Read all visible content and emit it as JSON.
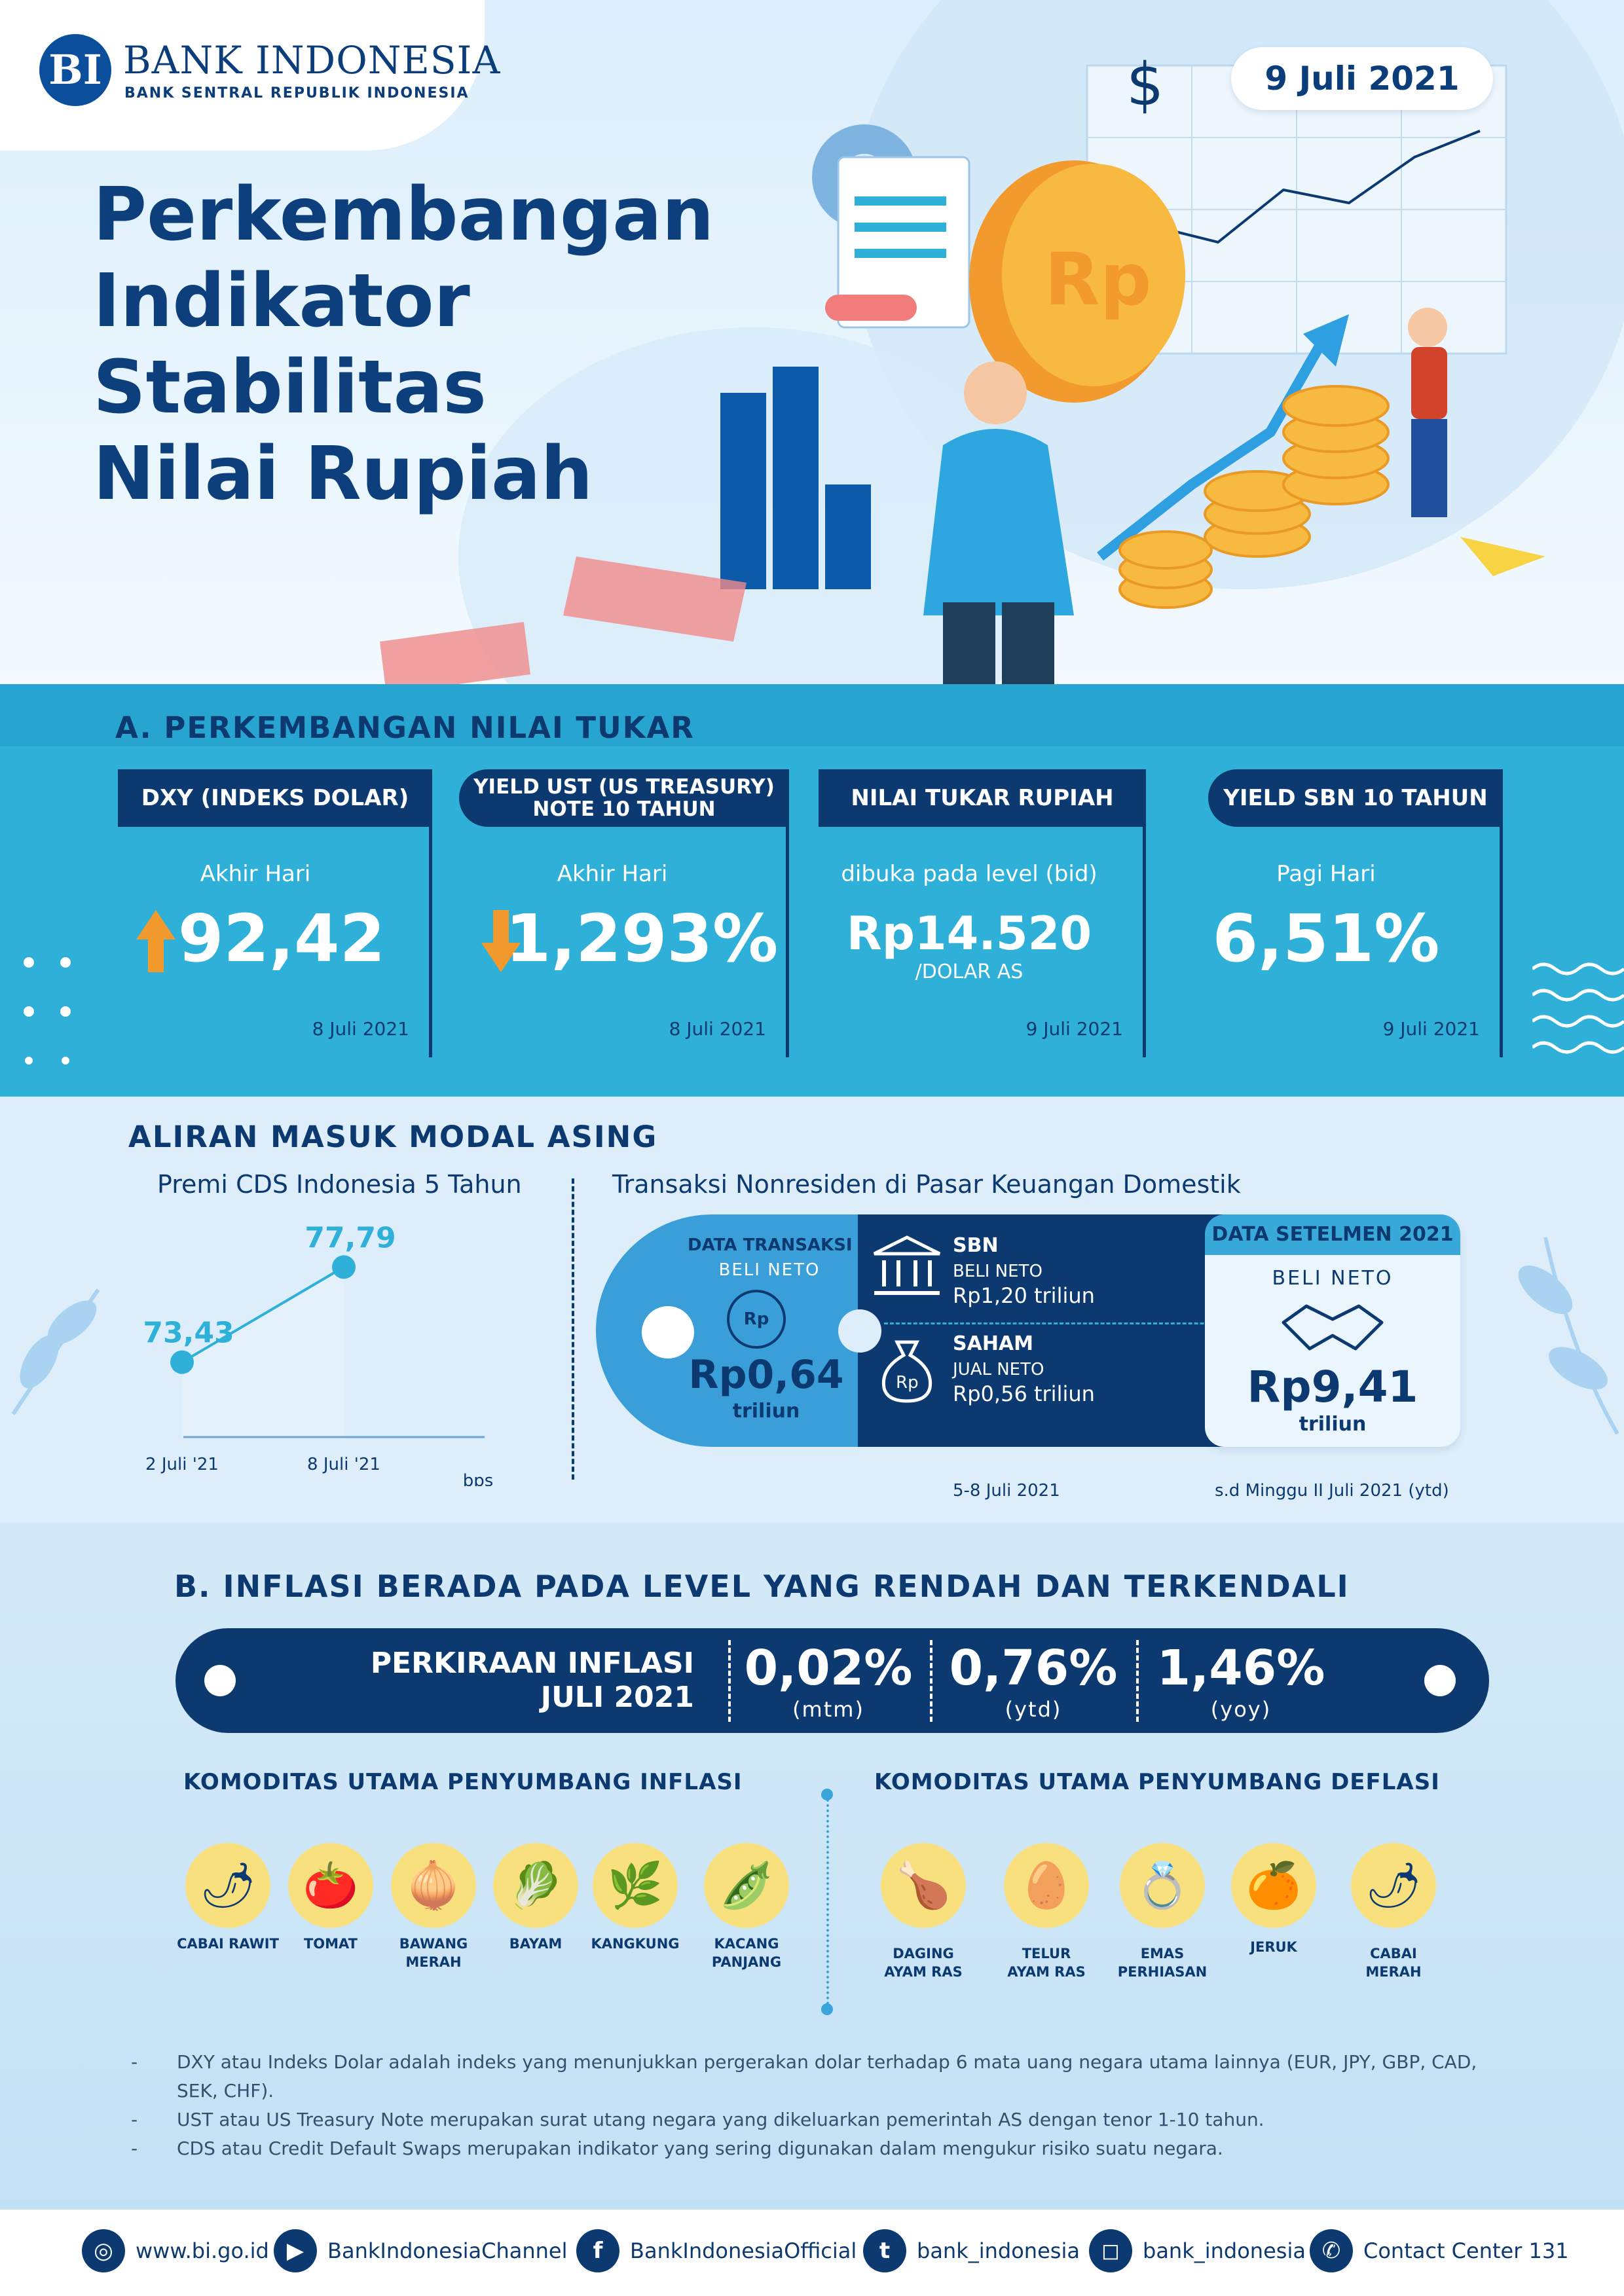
{
  "header": {
    "bank_name": "BANK INDONESIA",
    "bank_sub": "BANK SENTRAL REPUBLIK INDONESIA",
    "logo_letters": "BI",
    "date": "9 Juli 2021",
    "title_lines": [
      "Perkembangan",
      "Indikator",
      "Stabilitas",
      "Nilai Rupiah"
    ]
  },
  "section_a": {
    "title": "A. PERKEMBANGAN NILAI TUKAR",
    "cards": [
      {
        "tag_line1": "DXY (INDEKS DOLAR)",
        "tag_line2": "",
        "label": "Akhir Hari",
        "value": "92,42",
        "unit": "",
        "date": "8 Juli 2021",
        "trend": "up"
      },
      {
        "tag_line1": "YIELD UST (US TREASURY)",
        "tag_line2": "NOTE 10 TAHUN",
        "label": "Akhir Hari",
        "value": "1,293%",
        "unit": "",
        "date": "8 Juli 2021",
        "trend": "down"
      },
      {
        "tag_line1": "NILAI TUKAR RUPIAH",
        "tag_line2": "",
        "label": "dibuka pada level (bid)",
        "value": "Rp14.520",
        "unit": "/DOLAR AS",
        "date": "9 Juli 2021",
        "trend": "none"
      },
      {
        "tag_line1": "YIELD SBN 10 TAHUN",
        "tag_line2": "",
        "label": "Pagi Hari",
        "value": "6,51%",
        "unit": "",
        "date": "9 Juli 2021",
        "trend": "none"
      }
    ]
  },
  "aliran": {
    "title": "ALIRAN MASUK MODAL ASING",
    "cds_title": "Premi CDS Indonesia 5 Tahun",
    "trans_title": "Transaksi Nonresiden di Pasar Keuangan Domestik",
    "chart_unit": "bps",
    "transaksi": {
      "label1": "DATA TRANSAKSI",
      "label2": "BELI NETO",
      "value": "Rp0,64",
      "value_unit": "triliun",
      "sbn_title": "SBN",
      "sbn_label": "BELI NETO",
      "sbn_value": "Rp1,20 triliun",
      "saham_title": "SAHAM",
      "saham_label": "JUAL NETO",
      "saham_value": "Rp0,56 triliun",
      "period": "5-8 Juli 2021"
    },
    "setelmen": {
      "tag": "DATA SETELMEN 2021",
      "label": "BELI NETO",
      "value": "Rp9,41",
      "value_unit": "triliun",
      "period": "s.d Minggu II Juli 2021 (ytd)"
    }
  },
  "chart_data": {
    "type": "line",
    "title": "Premi CDS Indonesia 5 Tahun",
    "categories": [
      "2 Juli '21",
      "8 Juli '21"
    ],
    "values": [
      73.43,
      77.79
    ],
    "value_labels": [
      "73,43",
      "77,79"
    ],
    "ylabel": "bps",
    "grid": false
  },
  "section_b": {
    "title": "B. INFLASI BERADA PADA LEVEL YANG RENDAH DAN TERKENDALI",
    "bar_label1": "PERKIRAAN INFLASI",
    "bar_label2": "JULI 2021",
    "values": [
      {
        "value": "0,02%",
        "unit": "(mtm)"
      },
      {
        "value": "0,76%",
        "unit": "(ytd)"
      },
      {
        "value": "1,46%",
        "unit": "(yoy)"
      }
    ],
    "inflasi_title": "KOMODITAS UTAMA PENYUMBANG INFLASI",
    "deflasi_title": "KOMODITAS UTAMA PENYUMBANG DEFLASI",
    "inflasi_items": [
      {
        "l1": "CABAI RAWIT",
        "l2": "",
        "icon": "chili-icon",
        "glyph": "🌶"
      },
      {
        "l1": "TOMAT",
        "l2": "",
        "icon": "tomato-icon",
        "glyph": "🍅"
      },
      {
        "l1": "BAWANG",
        "l2": "MERAH",
        "icon": "shallot-icon",
        "glyph": "🧅"
      },
      {
        "l1": "BAYAM",
        "l2": "",
        "icon": "spinach-icon",
        "glyph": "🥬"
      },
      {
        "l1": "KANGKUNG",
        "l2": "",
        "icon": "water-spinach-icon",
        "glyph": "🌿"
      },
      {
        "l1": "KACANG",
        "l2": "PANJANG",
        "icon": "long-bean-icon",
        "glyph": "🫛"
      }
    ],
    "deflasi_items": [
      {
        "l1": "DAGING",
        "l2": "AYAM RAS",
        "icon": "chicken-icon",
        "glyph": "🍗"
      },
      {
        "l1": "TELUR",
        "l2": "AYAM RAS",
        "icon": "egg-icon",
        "glyph": "🥚"
      },
      {
        "l1": "EMAS",
        "l2": "PERHIASAN",
        "icon": "gold-ring-icon",
        "glyph": "💍"
      },
      {
        "l1": "JERUK",
        "l2": "",
        "icon": "orange-icon",
        "glyph": "🍊"
      },
      {
        "l1": "CABAI",
        "l2": "MERAH",
        "icon": "red-chili-icon",
        "glyph": "🌶"
      }
    ],
    "notes": [
      "DXY atau Indeks Dolar adalah indeks yang menunjukkan pergerakan dolar terhadap 6 mata uang negara utama lainnya (EUR, JPY, GBP, CAD, SEK, CHF).",
      "UST atau US Treasury Note merupakan surat utang negara yang dikeluarkan pemerintah AS dengan tenor 1-10 tahun.",
      "CDS atau Credit Default Swaps merupakan indikator yang sering digunakan dalam mengukur risiko suatu negara."
    ]
  },
  "footer": [
    {
      "text": "www.bi.go.id",
      "icon": "globe-icon",
      "glyph": "◎"
    },
    {
      "text": "BankIndonesiaChannel",
      "icon": "youtube-icon",
      "glyph": "▶"
    },
    {
      "text": "BankIndonesiaOfficial",
      "icon": "facebook-icon",
      "glyph": "f"
    },
    {
      "text": "bank_indonesia",
      "icon": "twitter-icon",
      "glyph": "t"
    },
    {
      "text": "bank_indonesia",
      "icon": "instagram-icon",
      "glyph": "◻"
    },
    {
      "text": "Contact Center 131",
      "icon": "phone-icon",
      "glyph": "✆"
    }
  ],
  "colors": {
    "navy": "#0c3a70",
    "cyan": "#2eb0d9",
    "orange": "#f2992e",
    "yellow": "#f9e07f"
  }
}
